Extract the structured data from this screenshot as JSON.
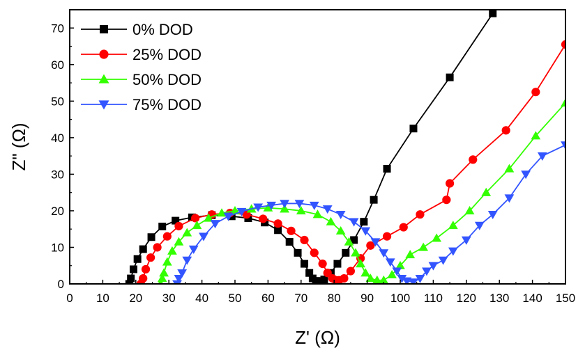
{
  "chart_data": {
    "type": "scatter",
    "title": "",
    "xlabel": "Z' (Ω)",
    "ylabel": "Z\" (Ω)",
    "xlim": [
      0,
      150
    ],
    "ylim": [
      0,
      75
    ],
    "xticks": [
      0,
      10,
      20,
      30,
      40,
      50,
      60,
      70,
      80,
      90,
      100,
      110,
      120,
      130,
      140,
      150
    ],
    "yticks": [
      0,
      10,
      20,
      30,
      40,
      50,
      60,
      70
    ],
    "grid": false,
    "legend_position": "top-left",
    "series": [
      {
        "name": "0% DOD",
        "color": "#000000",
        "marker": "square",
        "points": [
          [
            18,
            0
          ],
          [
            18.5,
            1.5
          ],
          [
            19.3,
            4
          ],
          [
            20.5,
            6.8
          ],
          [
            22.2,
            9.5
          ],
          [
            24.7,
            12.8
          ],
          [
            28,
            15.7
          ],
          [
            32,
            17.3
          ],
          [
            37,
            18.2
          ],
          [
            43,
            18.8
          ],
          [
            49,
            18.5
          ],
          [
            54,
            18
          ],
          [
            59,
            16.8
          ],
          [
            63,
            14.7
          ],
          [
            66.5,
            11.5
          ],
          [
            69,
            8.5
          ],
          [
            71,
            5.5
          ],
          [
            72.5,
            3
          ],
          [
            73.5,
            1.5
          ],
          [
            74.5,
            0.8
          ],
          [
            75.5,
            0.8
          ],
          [
            77,
            1.2
          ],
          [
            79,
            3
          ],
          [
            81,
            5.5
          ],
          [
            83.5,
            8.5
          ],
          [
            86,
            12
          ],
          [
            89,
            17
          ],
          [
            92,
            23
          ],
          [
            96,
            31.5
          ],
          [
            104,
            42.5
          ],
          [
            115,
            56.5
          ],
          [
            128,
            74
          ]
        ]
      },
      {
        "name": "25% DOD",
        "color": "#ff0000",
        "marker": "circle",
        "points": [
          [
            21.5,
            0
          ],
          [
            22.2,
            1.5
          ],
          [
            23,
            4
          ],
          [
            24.5,
            7.2
          ],
          [
            26.5,
            10
          ],
          [
            29.5,
            13
          ],
          [
            33,
            15.8
          ],
          [
            38,
            18
          ],
          [
            43,
            19
          ],
          [
            48.5,
            19.4
          ],
          [
            53.5,
            19
          ],
          [
            58.5,
            17.8
          ],
          [
            63,
            16.5
          ],
          [
            67,
            14.5
          ],
          [
            71,
            12
          ],
          [
            74,
            8.5
          ],
          [
            76.5,
            5.5
          ],
          [
            78,
            3
          ],
          [
            79.5,
            1.5
          ],
          [
            80.5,
            1
          ],
          [
            81.5,
            1
          ],
          [
            83,
            1.5
          ],
          [
            85,
            3.5
          ],
          [
            88,
            7
          ],
          [
            91,
            10.5
          ],
          [
            96,
            13
          ],
          [
            101,
            15.5
          ],
          [
            106,
            19
          ],
          [
            114,
            23
          ],
          [
            115,
            27.5
          ],
          [
            122,
            34
          ],
          [
            132,
            42
          ],
          [
            141,
            52.5
          ],
          [
            150,
            65.5
          ]
        ]
      },
      {
        "name": "50% DOD",
        "color": "#33ff00",
        "marker": "triangle-up",
        "points": [
          [
            27.5,
            0
          ],
          [
            28,
            1.5
          ],
          [
            28.5,
            3
          ],
          [
            29.5,
            6
          ],
          [
            31,
            9
          ],
          [
            33,
            11.5
          ],
          [
            35.5,
            14
          ],
          [
            38.5,
            16
          ],
          [
            42,
            18
          ],
          [
            46,
            19.4
          ],
          [
            50,
            20
          ],
          [
            55,
            20.5
          ],
          [
            60,
            20.8
          ],
          [
            65,
            20.5
          ],
          [
            70,
            20
          ],
          [
            75,
            19
          ],
          [
            79,
            17
          ],
          [
            82,
            14.5
          ],
          [
            84.5,
            11.5
          ],
          [
            86.5,
            8.5
          ],
          [
            88,
            5.5
          ],
          [
            89.5,
            3
          ],
          [
            91,
            1.5
          ],
          [
            93,
            1
          ],
          [
            95,
            1
          ],
          [
            97.5,
            2.5
          ],
          [
            100,
            5
          ],
          [
            103,
            8
          ],
          [
            107,
            10
          ],
          [
            111,
            12.5
          ],
          [
            116,
            16
          ],
          [
            121,
            20
          ],
          [
            126,
            25
          ],
          [
            133,
            31.5
          ],
          [
            141,
            40.5
          ],
          [
            150,
            49.5
          ]
        ]
      },
      {
        "name": "75% DOD",
        "color": "#3355ff",
        "marker": "triangle-down",
        "points": [
          [
            32.5,
            0
          ],
          [
            33,
            1.5
          ],
          [
            34,
            3
          ],
          [
            35.5,
            6.5
          ],
          [
            37.5,
            9.5
          ],
          [
            40.5,
            13
          ],
          [
            44,
            16.5
          ],
          [
            48,
            18.5
          ],
          [
            52,
            19.8
          ],
          [
            57,
            21
          ],
          [
            61,
            21.5
          ],
          [
            65,
            22
          ],
          [
            69.5,
            22
          ],
          [
            74,
            21.5
          ],
          [
            78,
            20.5
          ],
          [
            82,
            19
          ],
          [
            86,
            17
          ],
          [
            89.5,
            14.5
          ],
          [
            92.5,
            11.5
          ],
          [
            95,
            8.5
          ],
          [
            97,
            6
          ],
          [
            99,
            3.5
          ],
          [
            100.5,
            1.5
          ],
          [
            102,
            0.8
          ],
          [
            104,
            0.5
          ],
          [
            106,
            1.5
          ],
          [
            108,
            3.5
          ],
          [
            110,
            5
          ],
          [
            113,
            6.5
          ],
          [
            116,
            9
          ],
          [
            120,
            12
          ],
          [
            124,
            16
          ],
          [
            128,
            19
          ],
          [
            133,
            23.5
          ],
          [
            138,
            30
          ],
          [
            143,
            35
          ],
          [
            150,
            38
          ]
        ]
      }
    ]
  }
}
